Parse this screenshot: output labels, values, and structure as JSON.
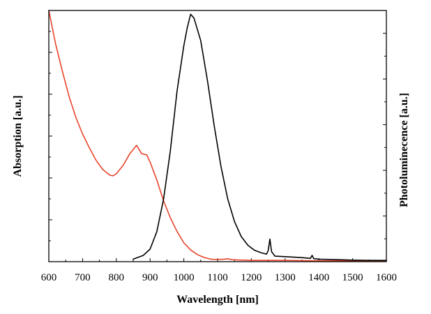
{
  "chart_data": {
    "type": "line",
    "xlabel": "Wavelength [nm]",
    "ylabel_left": "Absorption [a.u.]",
    "ylabel_right": "Photoluminecence [a.u.]",
    "xlim": [
      600,
      1600
    ],
    "x_ticks": [
      600,
      700,
      800,
      900,
      1000,
      1100,
      1200,
      1300,
      1400,
      1500,
      1600
    ],
    "ylim_left": [
      0,
      6
    ],
    "ylim_right": [
      0,
      1
    ],
    "grid": false,
    "series": [
      {
        "axis": "left",
        "color": "#e8432a",
        "points": [
          [
            600,
            6.0
          ],
          [
            620,
            5.2
          ],
          [
            640,
            4.55
          ],
          [
            660,
            3.95
          ],
          [
            680,
            3.45
          ],
          [
            700,
            3.05
          ],
          [
            720,
            2.72
          ],
          [
            740,
            2.42
          ],
          [
            760,
            2.2
          ],
          [
            780,
            2.07
          ],
          [
            790,
            2.05
          ],
          [
            800,
            2.1
          ],
          [
            820,
            2.3
          ],
          [
            840,
            2.58
          ],
          [
            860,
            2.78
          ],
          [
            875,
            2.58
          ],
          [
            890,
            2.55
          ],
          [
            900,
            2.38
          ],
          [
            920,
            1.95
          ],
          [
            940,
            1.45
          ],
          [
            960,
            1.05
          ],
          [
            980,
            0.72
          ],
          [
            1000,
            0.45
          ],
          [
            1020,
            0.28
          ],
          [
            1040,
            0.17
          ],
          [
            1060,
            0.1
          ],
          [
            1080,
            0.06
          ],
          [
            1100,
            0.05
          ],
          [
            1120,
            0.06
          ],
          [
            1130,
            0.07
          ],
          [
            1140,
            0.05
          ],
          [
            1160,
            0.04
          ],
          [
            1200,
            0.03
          ],
          [
            1300,
            0.03
          ],
          [
            1400,
            0.02
          ],
          [
            1500,
            0.02
          ],
          [
            1600,
            0.02
          ]
        ]
      },
      {
        "axis": "right",
        "color": "#000000",
        "points": [
          [
            850,
            0.01
          ],
          [
            880,
            0.025
          ],
          [
            900,
            0.05
          ],
          [
            920,
            0.12
          ],
          [
            940,
            0.25
          ],
          [
            960,
            0.44
          ],
          [
            980,
            0.68
          ],
          [
            1000,
            0.86
          ],
          [
            1010,
            0.93
          ],
          [
            1020,
            0.985
          ],
          [
            1030,
            0.97
          ],
          [
            1050,
            0.88
          ],
          [
            1070,
            0.72
          ],
          [
            1090,
            0.54
          ],
          [
            1110,
            0.38
          ],
          [
            1130,
            0.25
          ],
          [
            1150,
            0.16
          ],
          [
            1170,
            0.1
          ],
          [
            1190,
            0.065
          ],
          [
            1210,
            0.045
          ],
          [
            1230,
            0.035
          ],
          [
            1245,
            0.03
          ],
          [
            1250,
            0.045
          ],
          [
            1255,
            0.09
          ],
          [
            1260,
            0.04
          ],
          [
            1270,
            0.022
          ],
          [
            1300,
            0.02
          ],
          [
            1350,
            0.016
          ],
          [
            1375,
            0.013
          ],
          [
            1380,
            0.025
          ],
          [
            1385,
            0.012
          ],
          [
            1400,
            0.01
          ],
          [
            1450,
            0.008
          ],
          [
            1500,
            0.006
          ],
          [
            1550,
            0.005
          ],
          [
            1600,
            0.005
          ]
        ]
      }
    ]
  }
}
